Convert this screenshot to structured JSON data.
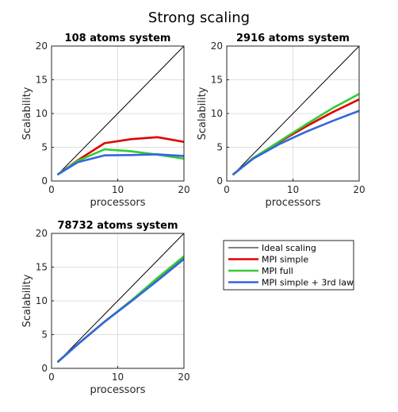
{
  "figure_title": "Strong scaling",
  "chart_data": [
    {
      "type": "line",
      "title": "108 atoms system",
      "xlabel": "processors",
      "ylabel": "Scalability",
      "xlim": [
        0,
        20
      ],
      "ylim": [
        0,
        20
      ],
      "xticks": [
        0,
        10,
        20
      ],
      "yticks": [
        0,
        5,
        10,
        15,
        20
      ],
      "grid": true,
      "series": [
        {
          "name": "Ideal scaling",
          "color": "#000000",
          "x": [
            1,
            20
          ],
          "y": [
            1,
            20
          ]
        },
        {
          "name": "MPI simple",
          "color": "#e00000",
          "x": [
            1,
            4,
            8,
            12,
            16,
            20
          ],
          "y": [
            1,
            3.1,
            5.6,
            6.2,
            6.5,
            5.8
          ]
        },
        {
          "name": "MPI full",
          "color": "#33cc33",
          "x": [
            1,
            4,
            8,
            12,
            16,
            20
          ],
          "y": [
            1,
            3.0,
            4.7,
            4.4,
            3.9,
            3.3
          ]
        },
        {
          "name": "MPI simple + 3rd law",
          "color": "#3366dd",
          "x": [
            1,
            4,
            8,
            12,
            16,
            20
          ],
          "y": [
            1,
            2.8,
            3.8,
            3.85,
            3.95,
            3.7
          ]
        }
      ]
    },
    {
      "type": "line",
      "title": "2916 atoms system",
      "xlabel": "processors",
      "ylabel": "Scalability",
      "xlim": [
        0,
        20
      ],
      "ylim": [
        0,
        20
      ],
      "xticks": [
        0,
        10,
        20
      ],
      "yticks": [
        0,
        5,
        10,
        15,
        20
      ],
      "grid": true,
      "series": [
        {
          "name": "Ideal scaling",
          "color": "#000000",
          "x": [
            1,
            20
          ],
          "y": [
            1,
            20
          ]
        },
        {
          "name": "MPI simple",
          "color": "#e00000",
          "x": [
            1,
            4,
            8,
            12,
            16,
            20
          ],
          "y": [
            1,
            3.4,
            5.8,
            8.1,
            10.2,
            12.1
          ]
        },
        {
          "name": "MPI full",
          "color": "#33cc33",
          "x": [
            1,
            4,
            8,
            12,
            16,
            20
          ],
          "y": [
            1,
            3.4,
            5.9,
            8.4,
            10.8,
            12.9
          ]
        },
        {
          "name": "MPI simple + 3rd law",
          "color": "#3366dd",
          "x": [
            1,
            4,
            8,
            12,
            16,
            20
          ],
          "y": [
            1,
            3.3,
            5.5,
            7.3,
            8.9,
            10.4
          ]
        }
      ]
    },
    {
      "type": "line",
      "title": "78732 atoms system",
      "xlabel": "processors",
      "ylabel": "Scalability",
      "xlim": [
        0,
        20
      ],
      "ylim": [
        0,
        20
      ],
      "xticks": [
        0,
        10,
        20
      ],
      "yticks": [
        0,
        5,
        10,
        15,
        20
      ],
      "grid": true,
      "series": [
        {
          "name": "Ideal scaling",
          "color": "#000000",
          "x": [
            1,
            20
          ],
          "y": [
            1,
            20
          ]
        },
        {
          "name": "MPI simple",
          "color": "#e00000",
          "x": [
            1,
            4,
            8,
            12,
            16,
            20
          ],
          "y": [
            1,
            3.6,
            6.9,
            10.0,
            13.2,
            16.3
          ]
        },
        {
          "name": "MPI full",
          "color": "#33cc33",
          "x": [
            1,
            4,
            8,
            12,
            16,
            20
          ],
          "y": [
            1,
            3.6,
            6.9,
            10.0,
            13.4,
            16.6
          ]
        },
        {
          "name": "MPI simple + 3rd law",
          "color": "#3366dd",
          "x": [
            1,
            4,
            8,
            12,
            16,
            20
          ],
          "y": [
            1,
            3.6,
            6.9,
            9.9,
            13.0,
            16.2
          ]
        }
      ]
    }
  ],
  "legend": {
    "placement": "bottom-right tile",
    "entries": [
      {
        "label": "Ideal scaling",
        "color": "#000000"
      },
      {
        "label": "MPI simple",
        "color": "#e00000"
      },
      {
        "label": "MPI full",
        "color": "#33cc33"
      },
      {
        "label": "MPI simple + 3rd law",
        "color": "#3366dd"
      }
    ]
  }
}
